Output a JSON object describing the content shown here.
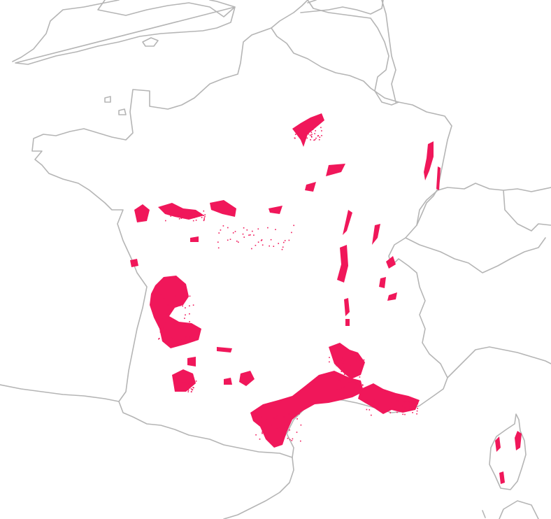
{
  "map": {
    "feature_color": "#f0175a",
    "border_color": "#b5b5b5",
    "background": "#ffffff",
    "regions": [
      "champagne",
      "alsace",
      "burgundy",
      "beaujolais",
      "jura",
      "savoie",
      "rhone-valley",
      "loire-valley",
      "bordeaux",
      "cognac",
      "southwest",
      "languedoc-roussillon",
      "provence",
      "corsica",
      "lorraine"
    ]
  }
}
